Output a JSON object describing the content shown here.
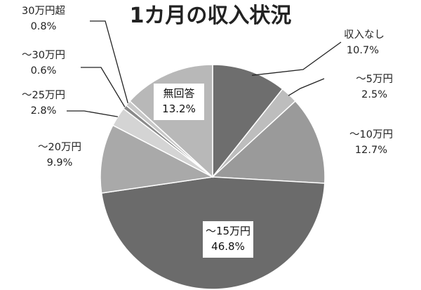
{
  "chart_data": {
    "type": "pie",
    "title": "1カ月の収入状況",
    "slices": [
      {
        "label": "収入なし",
        "value": 10.7,
        "value_label": "10.7%",
        "color": "#6e6e6e"
      },
      {
        "label": "～5万円",
        "value": 2.5,
        "value_label": "2.5%",
        "color": "#bdbdbd"
      },
      {
        "label": "～10万円",
        "value": 12.7,
        "value_label": "12.7%",
        "color": "#9a9a9a"
      },
      {
        "label": "～15万円",
        "value": 46.8,
        "value_label": "46.8%",
        "color": "#6b6b6b"
      },
      {
        "label": "～20万円",
        "value": 9.9,
        "value_label": "9.9%",
        "color": "#a9a9a9"
      },
      {
        "label": "～25万円",
        "value": 2.8,
        "value_label": "2.8%",
        "color": "#d4d4d4"
      },
      {
        "label": "～30万円",
        "value": 0.6,
        "value_label": "0.6%",
        "color": "#8a8a8a"
      },
      {
        "label": "30万円超",
        "value": 0.8,
        "value_label": "0.8%",
        "color": "#c8c8c8"
      },
      {
        "label": "無回答",
        "value": 13.2,
        "value_label": "13.2%",
        "color": "#b8b8b8"
      }
    ],
    "start_angle": "12 o'clock",
    "direction": "clockwise",
    "legend": "none"
  }
}
